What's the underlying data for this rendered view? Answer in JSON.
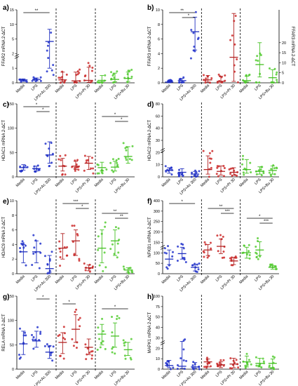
{
  "figure": {
    "categories": [
      "Media",
      "LPS",
      "LPS+Ac 300",
      "Media",
      "LPS",
      "LPS+Pr 30",
      "Media",
      "LPS",
      "LPS+Bu 30"
    ],
    "group_colors": [
      "#1f2fbf",
      "#b22222",
      "#44c022"
    ],
    "dot_colors": [
      "#2233cc",
      "#cc2a2a",
      "#55cc33"
    ]
  },
  "chart_data": [
    {
      "type": "scatter",
      "panel": "a)",
      "ylabel": "FFAR2 mRNA 2-ΔCT",
      "ylim": [
        0,
        15
      ],
      "yticks": [
        "0",
        "1",
        "2",
        "5",
        "10",
        "15"
      ],
      "broken_axis": true,
      "medians": [
        0.6,
        0.7,
        8.5,
        0.6,
        0.4,
        0.5,
        0.5,
        0.7,
        0.9
      ],
      "iqr_low": [
        0.3,
        0.4,
        3.0,
        0.2,
        0.1,
        0.1,
        0.2,
        0.2,
        0.3
      ],
      "iqr_high": [
        0.8,
        1.0,
        11.0,
        2.2,
        2.2,
        3.2,
        1.5,
        2.0,
        2.2
      ],
      "significance": [
        {
          "from": 0,
          "to": 2,
          "label": "**"
        }
      ]
    },
    {
      "type": "scatter",
      "panel": "b)",
      "ylabel": "FFAR3 mRNA 2-ΔCT",
      "ylabel_right": "FFAR3 mRNA 2-ΔCT",
      "ylim": [
        0,
        10
      ],
      "yticks": [
        "0",
        "2",
        "4",
        "6",
        "8",
        "10"
      ],
      "yticks_right": [
        "0",
        "5",
        "10",
        "15",
        "20"
      ],
      "medians": [
        0.1,
        0.3,
        7.0,
        0.4,
        0.2,
        3.5,
        0.3,
        2.5,
        0.7
      ],
      "iqr_low": [
        0.0,
        0.1,
        4.5,
        0.1,
        0.0,
        0.2,
        0.1,
        0.8,
        0.1
      ],
      "iqr_high": [
        0.2,
        0.6,
        9.0,
        1.0,
        0.9,
        9.5,
        0.9,
        5.5,
        1.8
      ],
      "significance": [
        {
          "from": 0,
          "to": 2,
          "label": "**"
        },
        {
          "from": 1,
          "to": 2,
          "label": "*"
        }
      ]
    },
    {
      "type": "scatter",
      "panel": "c)",
      "ylabel": "HDAC1 mRNA 2-ΔCT",
      "ylim": [
        0,
        150
      ],
      "yticks": [
        "0",
        "50",
        "100",
        "150"
      ],
      "medians": [
        19,
        17,
        45,
        22,
        22,
        28,
        19,
        20,
        42
      ],
      "iqr_low": [
        14,
        12,
        28,
        12,
        15,
        15,
        12,
        12,
        28
      ],
      "iqr_high": [
        25,
        22,
        72,
        38,
        32,
        42,
        30,
        32,
        62
      ],
      "significance": [
        {
          "from": 0,
          "to": 2,
          "label": "*"
        },
        {
          "from": 1,
          "to": 2,
          "label": "*"
        },
        {
          "from": 6,
          "to": 8,
          "label": "*"
        },
        {
          "from": 7,
          "to": 8,
          "label": "*"
        }
      ]
    },
    {
      "type": "scatter",
      "panel": "d)",
      "ylabel": "HDAC2 mRNA 2-ΔCT",
      "ylim": [
        0,
        80
      ],
      "yticks": [
        "0",
        "10",
        "20",
        "30",
        "40",
        "60",
        "80"
      ],
      "broken_axis": true,
      "medians": [
        7,
        5,
        3,
        8,
        6,
        5,
        8,
        6,
        7
      ],
      "iqr_low": [
        4,
        2,
        1,
        3,
        2,
        2,
        4,
        3,
        3
      ],
      "iqr_high": [
        10,
        9,
        6,
        23,
        12,
        10,
        19,
        11,
        12
      ],
      "significance": []
    },
    {
      "type": "scatter",
      "panel": "e)",
      "ylabel": "HDAC9 mRNA 2-ΔCT",
      "ylim": [
        0,
        10
      ],
      "yticks": [
        "0",
        "2",
        "4",
        "6",
        "8",
        "10"
      ],
      "medians": [
        3,
        3,
        0.7,
        3.5,
        4.5,
        0.8,
        3.5,
        4.5,
        0.5
      ],
      "iqr_low": [
        1.5,
        1.5,
        0.2,
        2.0,
        2.5,
        0.4,
        1.5,
        2.5,
        0.2
      ],
      "iqr_high": [
        4,
        4.5,
        2.5,
        5.5,
        6.0,
        1.2,
        6.0,
        6.0,
        0.8
      ],
      "significance": [
        {
          "from": 3,
          "to": 5,
          "label": "***"
        },
        {
          "from": 4,
          "to": 5,
          "label": "*"
        },
        {
          "from": 6,
          "to": 8,
          "label": "**"
        },
        {
          "from": 7,
          "to": 8,
          "label": "**"
        }
      ]
    },
    {
      "type": "scatter",
      "panel": "f)",
      "ylabel": "NFKB1 mRNA 2-ΔCT",
      "ylim": [
        0,
        400
      ],
      "yticks": [
        "0",
        "50",
        "100",
        "150",
        "200",
        "250",
        "300",
        "400"
      ],
      "broken_axis": true,
      "medians": [
        80,
        110,
        35,
        130,
        150,
        70,
        115,
        130,
        35
      ],
      "iqr_low": [
        50,
        80,
        15,
        100,
        110,
        50,
        85,
        100,
        25
      ],
      "iqr_high": [
        130,
        145,
        50,
        160,
        190,
        90,
        145,
        175,
        45
      ],
      "significance": [
        {
          "from": 0,
          "to": 2,
          "label": "*"
        },
        {
          "from": 3,
          "to": 5,
          "label": "**"
        },
        {
          "from": 4,
          "to": 5,
          "label": "***"
        },
        {
          "from": 6,
          "to": 8,
          "label": "*"
        },
        {
          "from": 7,
          "to": 8,
          "label": "***"
        }
      ]
    },
    {
      "type": "scatter",
      "panel": "g)",
      "ylabel": "RELA mRNA 2-ΔCT",
      "ylim": [
        0,
        150
      ],
      "yticks": [
        "0",
        "50",
        "100",
        "150"
      ],
      "medians": [
        52,
        58,
        35,
        55,
        82,
        45,
        72,
        68,
        40
      ],
      "iqr_low": [
        30,
        45,
        22,
        32,
        55,
        30,
        50,
        45,
        28
      ],
      "iqr_high": [
        78,
        78,
        48,
        75,
        112,
        62,
        92,
        95,
        55
      ],
      "significance": [
        {
          "from": 1,
          "to": 2,
          "label": "*"
        },
        {
          "from": 3,
          "to": 4,
          "label": "*"
        },
        {
          "from": 6,
          "to": 8,
          "label": "*"
        }
      ]
    },
    {
      "type": "scatter",
      "panel": "h)",
      "ylabel": "MAPK1 mRNA 2-ΔCT",
      "ylim": [
        0,
        100
      ],
      "yticks": [
        "0",
        "10",
        "20",
        "30",
        "40",
        "50",
        "75",
        "100"
      ],
      "broken_axis": true,
      "medians": [
        5,
        4,
        3,
        10,
        6,
        7,
        10,
        8,
        8
      ],
      "iqr_low": [
        2,
        1,
        1,
        3,
        2,
        2,
        3,
        3,
        2
      ],
      "iqr_high": [
        12,
        38,
        9,
        14,
        10,
        15,
        18,
        15,
        14
      ],
      "significance": []
    }
  ]
}
